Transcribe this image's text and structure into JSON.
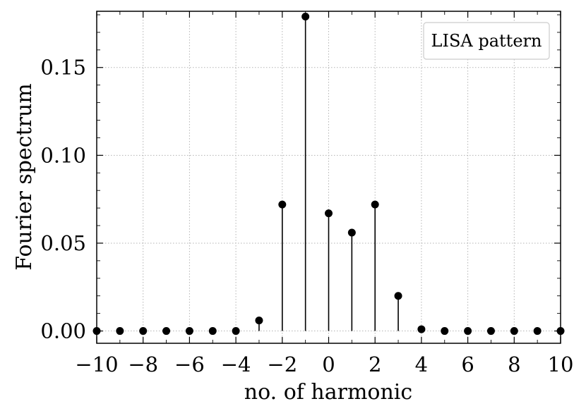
{
  "chart_data": {
    "type": "scatter",
    "subtype": "stem",
    "title": "",
    "xlabel": "no. of harmonic",
    "ylabel": "Fourier spectrum",
    "xlim": [
      -10,
      10
    ],
    "ylim": [
      -0.007,
      0.182
    ],
    "grid": true,
    "legend_position": "top-right",
    "x_ticks": [
      -10,
      -8,
      -6,
      -4,
      -2,
      0,
      2,
      4,
      6,
      8,
      10
    ],
    "x_tick_labels": [
      "−10",
      "−8",
      "−6",
      "−4",
      "−2",
      "0",
      "2",
      "4",
      "6",
      "8",
      "10"
    ],
    "y_ticks": [
      0.0,
      0.05,
      0.1,
      0.15
    ],
    "y_tick_labels": [
      "0.00",
      "0.05",
      "0.10",
      "0.15"
    ],
    "series": [
      {
        "name": "LISA pattern",
        "color": "#000000",
        "x": [
          -10,
          -9,
          -8,
          -7,
          -6,
          -5,
          -4,
          -3,
          -2,
          -1,
          0,
          1,
          2,
          3,
          4,
          5,
          6,
          7,
          8,
          9,
          10
        ],
        "y": [
          0.0,
          0.0,
          0.0,
          0.0,
          0.0,
          0.0,
          0.0,
          0.006,
          0.072,
          0.179,
          0.067,
          0.056,
          0.072,
          0.02,
          0.001,
          0.0,
          0.0,
          0.0,
          0.0,
          0.0,
          0.0
        ]
      }
    ]
  }
}
